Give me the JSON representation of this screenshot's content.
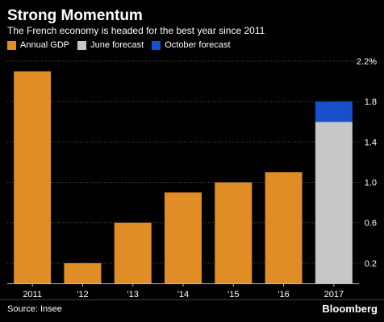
{
  "chart_data": {
    "type": "bar",
    "title": "Strong Momentum",
    "subtitle": "The French economy is headed for the best year since 2011",
    "categories": [
      "2011",
      "'12",
      "'13",
      "'14",
      "'15",
      "'16",
      "2017"
    ],
    "series": [
      {
        "name": "Annual GDP",
        "color": "#e08d25",
        "values": [
          2.1,
          0.2,
          0.6,
          0.9,
          1.0,
          1.1,
          null
        ]
      },
      {
        "name": "June forecast",
        "color": "#c7c7c7",
        "values": [
          null,
          null,
          null,
          null,
          null,
          null,
          1.6
        ]
      },
      {
        "name": "October forecast",
        "color": "#1750c8",
        "values": [
          null,
          null,
          null,
          null,
          null,
          null,
          0.2
        ]
      }
    ],
    "stacked_category": "2017",
    "ylim": [
      0,
      2.2
    ],
    "yticks": [
      "0.2",
      "0.6",
      "1.0",
      "1.4",
      "1.8",
      "2.2%"
    ],
    "ytick_values": [
      0.2,
      0.6,
      1.0,
      1.4,
      1.8,
      2.2
    ],
    "y_axis_side": "right",
    "grid": true,
    "legend_placement": "top-left"
  },
  "footer": {
    "source": "Source: Insee",
    "brand": "Bloomberg"
  }
}
